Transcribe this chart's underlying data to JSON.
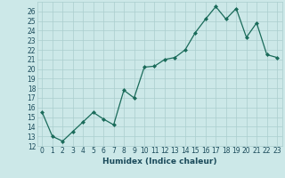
{
  "x": [
    0,
    1,
    2,
    3,
    4,
    5,
    6,
    7,
    8,
    9,
    10,
    11,
    12,
    13,
    14,
    15,
    16,
    17,
    18,
    19,
    20,
    21,
    22,
    23
  ],
  "y": [
    15.5,
    13.0,
    12.5,
    13.5,
    14.5,
    15.5,
    14.8,
    14.2,
    17.8,
    17.0,
    20.2,
    20.3,
    21.0,
    21.2,
    22.0,
    23.8,
    25.2,
    26.5,
    25.2,
    26.3,
    23.3,
    24.8,
    21.5,
    21.2
  ],
  "xlabel": "Humidex (Indice chaleur)",
  "ylim": [
    12,
    27
  ],
  "xlim": [
    -0.5,
    23.5
  ],
  "yticks": [
    12,
    13,
    14,
    15,
    16,
    17,
    18,
    19,
    20,
    21,
    22,
    23,
    24,
    25,
    26
  ],
  "xticks": [
    0,
    1,
    2,
    3,
    4,
    5,
    6,
    7,
    8,
    9,
    10,
    11,
    12,
    13,
    14,
    15,
    16,
    17,
    18,
    19,
    20,
    21,
    22,
    23
  ],
  "line_color": "#1a6b5a",
  "marker_color": "#1a6b5a",
  "bg_color": "#cce8e8",
  "grid_color": "#aacece",
  "tick_color": "#1a4a5a",
  "label_color": "#1a4a5a",
  "tick_fontsize": 5.5,
  "xlabel_fontsize": 6.5,
  "linewidth": 0.9,
  "markersize": 2.0
}
